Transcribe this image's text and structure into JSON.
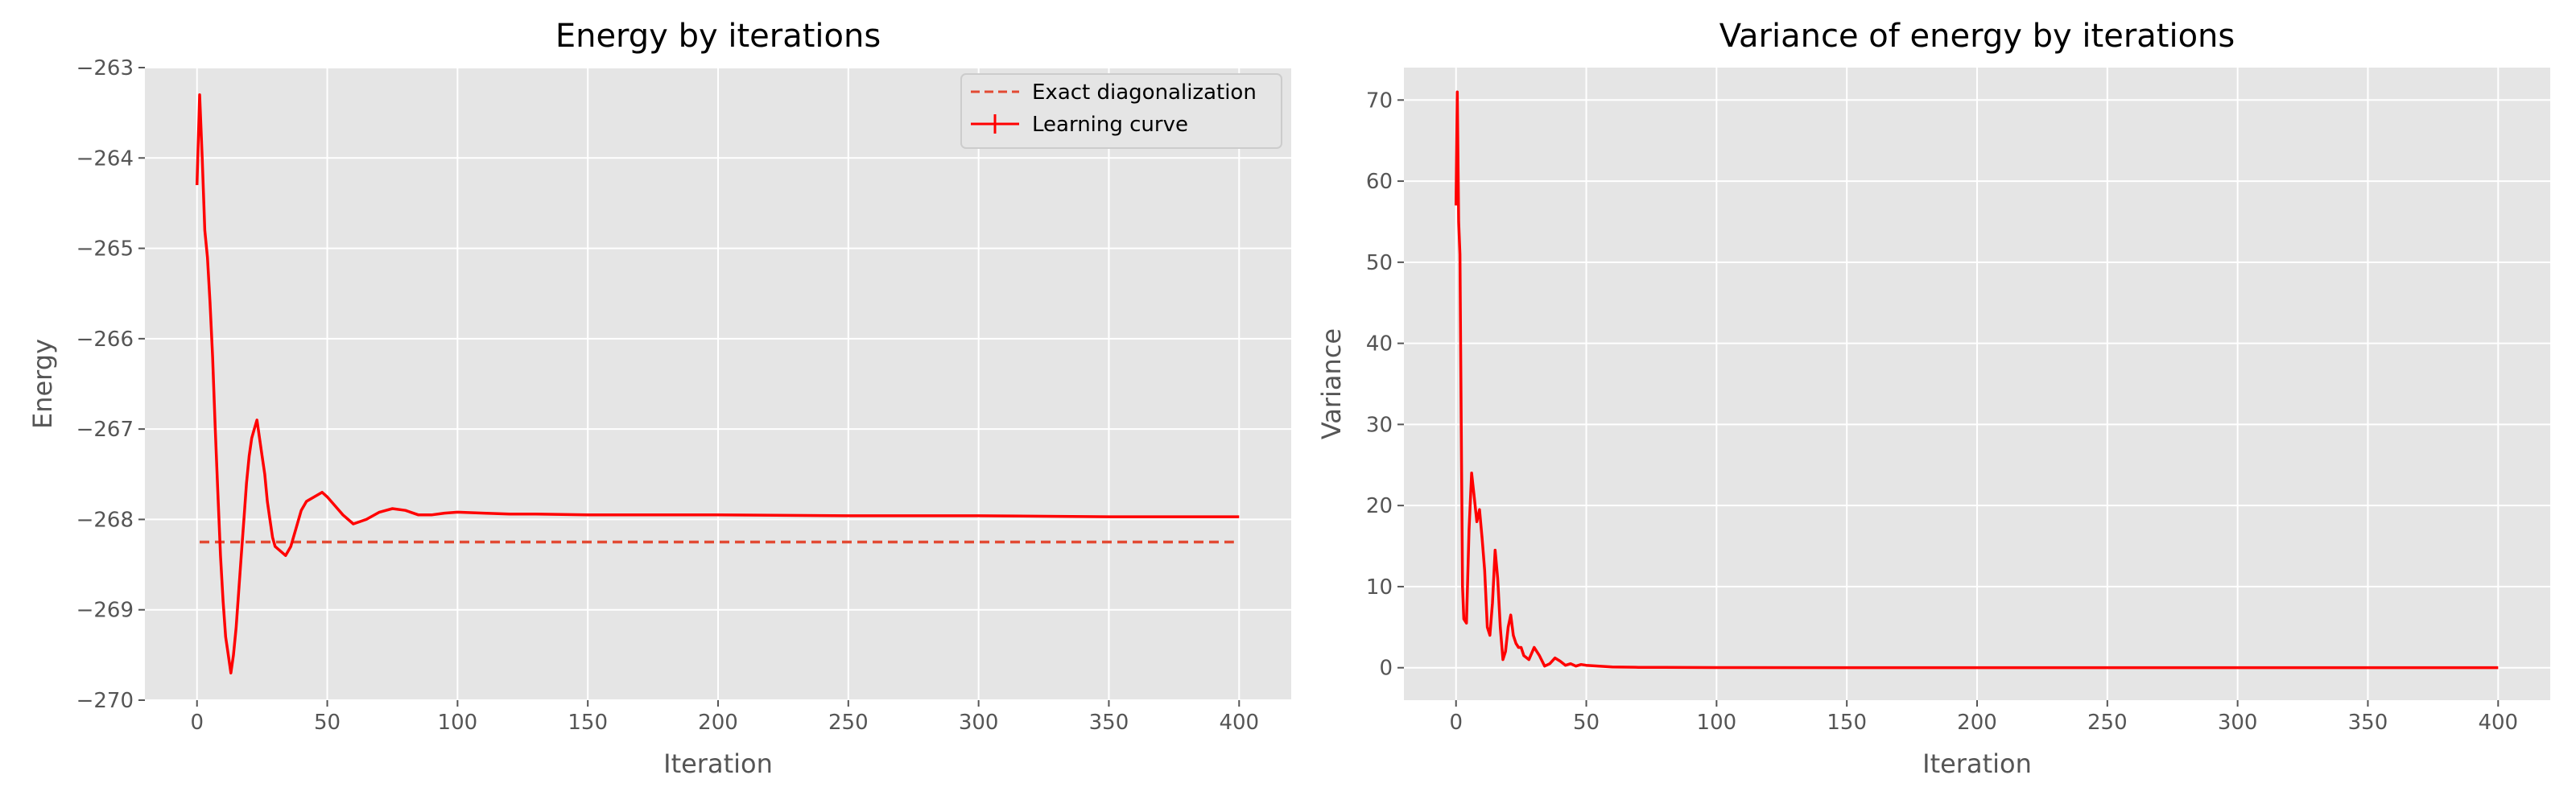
{
  "colors": {
    "axes_background": "#e5e5e5",
    "grid": "#ffffff",
    "learning_curve": "#ff0000",
    "exact_line": "#e24a33",
    "text": "#555555"
  },
  "chart_data": [
    {
      "type": "line",
      "title": "Energy by iterations",
      "xlabel": "Iteration",
      "ylabel": "Energy",
      "xlim": [
        -20,
        420
      ],
      "ylim": [
        -270,
        -263
      ],
      "xticks": [
        0,
        50,
        100,
        150,
        200,
        250,
        300,
        350,
        400
      ],
      "yticks": [
        -270,
        -269,
        -268,
        -267,
        -266,
        -265,
        -264,
        -263
      ],
      "xtick_labels": [
        "0",
        "50",
        "100",
        "150",
        "200",
        "250",
        "300",
        "350",
        "400"
      ],
      "ytick_labels": [
        "−270",
        "−269",
        "−268",
        "−267",
        "−266",
        "−265",
        "−264",
        "−263"
      ],
      "grid": true,
      "legend": {
        "position": "top-right",
        "entries": [
          "Exact diagonalization",
          "Learning curve"
        ]
      },
      "series": [
        {
          "name": "Exact diagonalization",
          "style": "dashed",
          "x": [
            1,
            398
          ],
          "y": [
            -268.25,
            -268.25
          ]
        },
        {
          "name": "Learning curve",
          "style": "solid",
          "x": [
            0,
            1,
            2,
            3,
            4,
            5,
            6,
            7,
            8,
            9,
            10,
            11,
            12,
            13,
            14,
            15,
            16,
            17,
            18,
            19,
            20,
            21,
            22,
            23,
            24,
            25,
            26,
            27,
            28,
            29,
            30,
            32,
            34,
            36,
            38,
            40,
            42,
            45,
            48,
            50,
            53,
            56,
            60,
            65,
            70,
            75,
            80,
            85,
            90,
            95,
            100,
            110,
            120,
            130,
            150,
            175,
            200,
            250,
            300,
            350,
            400
          ],
          "y": [
            -264.3,
            -263.3,
            -264.0,
            -264.8,
            -265.1,
            -265.6,
            -266.2,
            -267.0,
            -267.7,
            -268.4,
            -268.9,
            -269.3,
            -269.5,
            -269.7,
            -269.5,
            -269.2,
            -268.8,
            -268.4,
            -268.0,
            -267.6,
            -267.3,
            -267.1,
            -267.0,
            -266.9,
            -267.1,
            -267.3,
            -267.5,
            -267.8,
            -268.0,
            -268.2,
            -268.3,
            -268.35,
            -268.4,
            -268.3,
            -268.1,
            -267.9,
            -267.8,
            -267.75,
            -267.7,
            -267.75,
            -267.85,
            -267.95,
            -268.05,
            -268.0,
            -267.92,
            -267.88,
            -267.9,
            -267.95,
            -267.95,
            -267.93,
            -267.92,
            -267.93,
            -267.94,
            -267.94,
            -267.95,
            -267.95,
            -267.95,
            -267.96,
            -267.96,
            -267.97,
            -267.97
          ]
        }
      ]
    },
    {
      "type": "line",
      "title": "Variance of energy by iterations",
      "xlabel": "Iteration",
      "ylabel": "Variance",
      "xlim": [
        -20,
        420
      ],
      "ylim": [
        -4,
        74
      ],
      "xticks": [
        0,
        50,
        100,
        150,
        200,
        250,
        300,
        350,
        400
      ],
      "yticks": [
        0,
        10,
        20,
        30,
        40,
        50,
        60,
        70
      ],
      "xtick_labels": [
        "0",
        "50",
        "100",
        "150",
        "200",
        "250",
        "300",
        "350",
        "400"
      ],
      "ytick_labels": [
        "0",
        "10",
        "20",
        "30",
        "40",
        "50",
        "60",
        "70"
      ],
      "grid": true,
      "series": [
        {
          "x": [
            0,
            0.5,
            1,
            1.5,
            2,
            2.5,
            3,
            4,
            5,
            6,
            7,
            8,
            9,
            10,
            11,
            12,
            13,
            14,
            15,
            16,
            17,
            18,
            19,
            20,
            21,
            22,
            23,
            24,
            25,
            26,
            28,
            30,
            32,
            34,
            36,
            38,
            40,
            42,
            44,
            46,
            48,
            50,
            55,
            60,
            70,
            80,
            100,
            150,
            200,
            300,
            400
          ],
          "y": [
            57,
            71,
            55,
            51,
            30,
            10,
            6,
            5.5,
            17,
            24,
            21,
            18,
            19.5,
            16,
            12,
            5,
            4,
            8,
            14.5,
            11,
            5,
            1,
            2,
            5,
            6.5,
            4,
            3,
            2.5,
            2.5,
            1.5,
            1,
            2.5,
            1.5,
            0.2,
            0.5,
            1.2,
            0.8,
            0.3,
            0.5,
            0.2,
            0.4,
            0.3,
            0.2,
            0.1,
            0.05,
            0.05,
            0.02,
            0.01,
            0.01,
            0.01,
            0.01
          ]
        }
      ]
    }
  ]
}
